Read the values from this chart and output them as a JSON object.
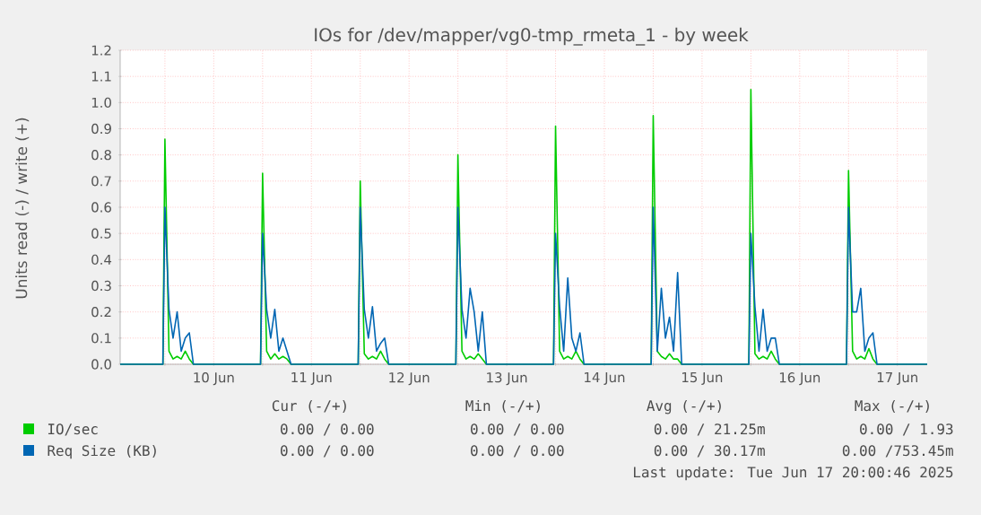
{
  "chart_data": {
    "type": "line",
    "title": "IOs for /dev/mapper/vg0-tmp_rmeta_1 - by week",
    "ylabel": "Units read (-) / write (+)",
    "x": [
      "2025-06-09T13:00",
      "2025-06-09T23:30",
      "2025-06-10T00:00",
      "2025-06-10T01:00",
      "2025-06-10T02:00",
      "2025-06-10T03:00",
      "2025-06-10T04:00",
      "2025-06-10T05:00",
      "2025-06-10T06:00",
      "2025-06-10T07:00",
      "2025-06-10T23:30",
      "2025-06-11T00:00",
      "2025-06-11T01:00",
      "2025-06-11T02:00",
      "2025-06-11T03:00",
      "2025-06-11T04:00",
      "2025-06-11T05:00",
      "2025-06-11T06:00",
      "2025-06-11T07:00",
      "2025-06-11T23:30",
      "2025-06-12T00:00",
      "2025-06-12T01:00",
      "2025-06-12T02:00",
      "2025-06-12T03:00",
      "2025-06-12T04:00",
      "2025-06-12T05:00",
      "2025-06-12T06:00",
      "2025-06-12T07:00",
      "2025-06-12T23:30",
      "2025-06-13T00:00",
      "2025-06-13T01:00",
      "2025-06-13T02:00",
      "2025-06-13T03:00",
      "2025-06-13T04:00",
      "2025-06-13T05:00",
      "2025-06-13T06:00",
      "2025-06-13T07:00",
      "2025-06-13T23:30",
      "2025-06-14T00:00",
      "2025-06-14T01:00",
      "2025-06-14T02:00",
      "2025-06-14T03:00",
      "2025-06-14T04:00",
      "2025-06-14T05:00",
      "2025-06-14T06:00",
      "2025-06-14T07:00",
      "2025-06-14T23:30",
      "2025-06-15T00:00",
      "2025-06-15T01:00",
      "2025-06-15T02:00",
      "2025-06-15T03:00",
      "2025-06-15T04:00",
      "2025-06-15T05:00",
      "2025-06-15T06:00",
      "2025-06-15T07:00",
      "2025-06-15T23:30",
      "2025-06-16T00:00",
      "2025-06-16T01:00",
      "2025-06-16T02:00",
      "2025-06-16T03:00",
      "2025-06-16T04:00",
      "2025-06-16T05:00",
      "2025-06-16T06:00",
      "2025-06-16T07:00",
      "2025-06-16T23:30",
      "2025-06-17T00:00",
      "2025-06-17T01:00",
      "2025-06-17T02:00",
      "2025-06-17T03:00",
      "2025-06-17T04:00",
      "2025-06-17T05:00",
      "2025-06-17T06:00",
      "2025-06-17T07:00",
      "2025-06-17T19:20"
    ],
    "series": [
      {
        "name": "IO/sec",
        "color": "#00cc00",
        "values": [
          0,
          0,
          0.86,
          0.05,
          0.02,
          0.03,
          0.02,
          0.05,
          0.02,
          0,
          0,
          0.73,
          0.05,
          0.02,
          0.04,
          0.02,
          0.03,
          0.02,
          0,
          0,
          0.7,
          0.04,
          0.02,
          0.03,
          0.02,
          0.05,
          0.02,
          0,
          0,
          0.8,
          0.05,
          0.02,
          0.03,
          0.02,
          0.04,
          0.02,
          0,
          0,
          0.91,
          0.05,
          0.02,
          0.03,
          0.02,
          0.05,
          0.02,
          0,
          0,
          0.95,
          0.05,
          0.03,
          0.02,
          0.04,
          0.02,
          0.02,
          0,
          0,
          1.05,
          0.04,
          0.02,
          0.03,
          0.02,
          0.05,
          0.02,
          0,
          0,
          0.74,
          0.05,
          0.02,
          0.03,
          0.02,
          0.06,
          0.02,
          0,
          0
        ]
      },
      {
        "name": "Req Size (KB)",
        "color": "#0066b3",
        "values": [
          0,
          0,
          0.6,
          0.21,
          0.1,
          0.2,
          0.05,
          0.1,
          0.12,
          0,
          0,
          0.5,
          0.21,
          0.1,
          0.21,
          0.05,
          0.1,
          0.05,
          0,
          0,
          0.6,
          0.21,
          0.1,
          0.22,
          0.05,
          0.08,
          0.1,
          0,
          0,
          0.6,
          0.21,
          0.1,
          0.29,
          0.2,
          0.05,
          0.2,
          0,
          0,
          0.5,
          0.22,
          0.05,
          0.33,
          0.1,
          0.05,
          0.12,
          0,
          0,
          0.6,
          0.05,
          0.29,
          0.1,
          0.18,
          0.05,
          0.35,
          0,
          0,
          0.5,
          0.22,
          0.05,
          0.21,
          0.05,
          0.1,
          0.1,
          0,
          0,
          0.6,
          0.2,
          0.2,
          0.29,
          0.05,
          0.1,
          0.12,
          0,
          0
        ]
      }
    ],
    "xlim": [
      "2025-06-09T13:00",
      "2025-06-17T19:20"
    ],
    "xticks": [
      {
        "value": "2025-06-10T00:00",
        "label": null
      },
      {
        "value": "2025-06-10T12:00",
        "label": "10 Jun"
      },
      {
        "value": "2025-06-11T00:00",
        "label": null
      },
      {
        "value": "2025-06-11T12:00",
        "label": "11 Jun"
      },
      {
        "value": "2025-06-12T00:00",
        "label": null
      },
      {
        "value": "2025-06-12T12:00",
        "label": "12 Jun"
      },
      {
        "value": "2025-06-13T00:00",
        "label": null
      },
      {
        "value": "2025-06-13T12:00",
        "label": "13 Jun"
      },
      {
        "value": "2025-06-14T00:00",
        "label": null
      },
      {
        "value": "2025-06-14T12:00",
        "label": "14 Jun"
      },
      {
        "value": "2025-06-15T00:00",
        "label": null
      },
      {
        "value": "2025-06-15T12:00",
        "label": "15 Jun"
      },
      {
        "value": "2025-06-16T00:00",
        "label": null
      },
      {
        "value": "2025-06-16T12:00",
        "label": "16 Jun"
      },
      {
        "value": "2025-06-17T00:00",
        "label": null
      },
      {
        "value": "2025-06-17T12:00",
        "label": "17 Jun"
      }
    ],
    "ylim": [
      0,
      1.2
    ],
    "yticks": [
      {
        "value": 0,
        "label": "0.0"
      },
      0.1,
      0.2,
      0.3,
      0.4,
      0.5,
      0.6,
      0.7,
      0.8,
      0.9,
      {
        "value": 1,
        "label": "1.0"
      },
      1.1,
      1.2
    ],
    "grid": true,
    "legend": "bottom",
    "annotations": [
      "Cur (-/+)",
      "Min (-/+)",
      "Avg (-/+)",
      "Max (-/+)",
      "0.00 /  0.00",
      "0.00 /  0.00",
      "0.00 / 21.25m",
      "0.00 /  1.93",
      "0.00 /  0.00",
      "0.00 /  0.00",
      "0.00 / 30.17m",
      "0.00 /753.45m",
      "Last update: Tue Jun 17 20:00:46 2025"
    ]
  }
}
